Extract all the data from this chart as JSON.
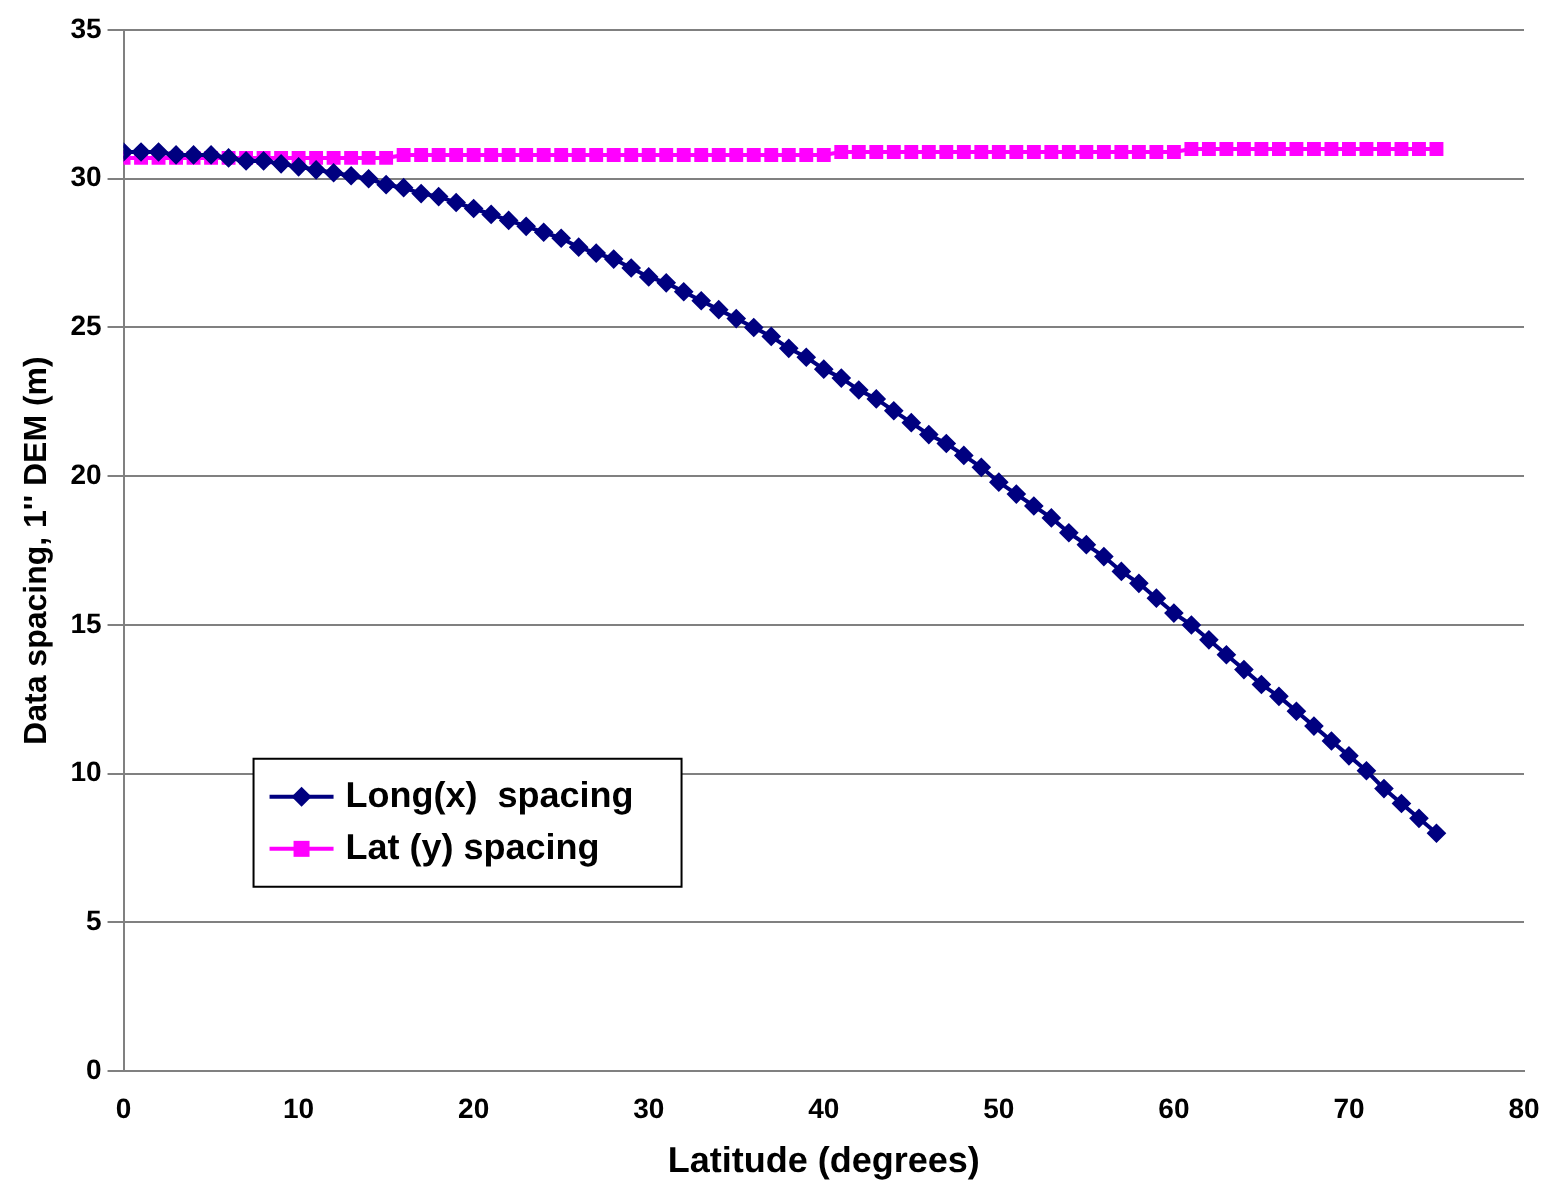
{
  "chart_data": {
    "type": "line",
    "xlabel": "Latitude (degrees)",
    "ylabel": "Data spacing, 1'' DEM (m)",
    "x": [
      0,
      1,
      2,
      3,
      4,
      5,
      6,
      7,
      8,
      9,
      10,
      11,
      12,
      13,
      14,
      15,
      16,
      17,
      18,
      19,
      20,
      21,
      22,
      23,
      24,
      25,
      26,
      27,
      28,
      29,
      30,
      31,
      32,
      33,
      34,
      35,
      36,
      37,
      38,
      39,
      40,
      41,
      42,
      43,
      44,
      45,
      46,
      47,
      48,
      49,
      50,
      51,
      52,
      53,
      54,
      55,
      56,
      57,
      58,
      59,
      60,
      61,
      62,
      63,
      64,
      65,
      66,
      67,
      68,
      69,
      70,
      71,
      72,
      73,
      74,
      75
    ],
    "series": [
      {
        "name": "Long(x)  spacing",
        "color": "#000080",
        "marker": "diamond",
        "values": [
          30.9,
          30.9,
          30.9,
          30.8,
          30.8,
          30.8,
          30.7,
          30.6,
          30.6,
          30.5,
          30.4,
          30.3,
          30.2,
          30.1,
          30.0,
          29.8,
          29.7,
          29.5,
          29.4,
          29.2,
          29.0,
          28.8,
          28.6,
          28.4,
          28.2,
          28.0,
          27.7,
          27.5,
          27.3,
          27.0,
          26.7,
          26.5,
          26.2,
          25.9,
          25.6,
          25.3,
          25.0,
          24.7,
          24.3,
          24.0,
          23.6,
          23.3,
          22.9,
          22.6,
          22.2,
          21.8,
          21.4,
          21.1,
          20.7,
          20.3,
          19.8,
          19.4,
          19.0,
          18.6,
          18.1,
          17.7,
          17.3,
          16.8,
          16.4,
          15.9,
          15.4,
          15.0,
          14.5,
          14.0,
          13.5,
          13.0,
          12.6,
          12.1,
          11.6,
          11.1,
          10.6,
          10.1,
          9.5,
          9.0,
          8.5,
          8.0
        ]
      },
      {
        "name": "Lat (y) spacing",
        "color": "#ff00ff",
        "marker": "square",
        "values": [
          30.7,
          30.7,
          30.7,
          30.7,
          30.7,
          30.7,
          30.7,
          30.7,
          30.7,
          30.7,
          30.7,
          30.7,
          30.7,
          30.7,
          30.7,
          30.7,
          30.8,
          30.8,
          30.8,
          30.8,
          30.8,
          30.8,
          30.8,
          30.8,
          30.8,
          30.8,
          30.8,
          30.8,
          30.8,
          30.8,
          30.8,
          30.8,
          30.8,
          30.8,
          30.8,
          30.8,
          30.8,
          30.8,
          30.8,
          30.8,
          30.8,
          30.9,
          30.9,
          30.9,
          30.9,
          30.9,
          30.9,
          30.9,
          30.9,
          30.9,
          30.9,
          30.9,
          30.9,
          30.9,
          30.9,
          30.9,
          30.9,
          30.9,
          30.9,
          30.9,
          30.9,
          31.0,
          31.0,
          31.0,
          31.0,
          31.0,
          31.0,
          31.0,
          31.0,
          31.0,
          31.0,
          31.0,
          31.0,
          31.0,
          31.0,
          31.0
        ]
      }
    ],
    "xlim": [
      0,
      80
    ],
    "xticks": [
      0,
      10,
      20,
      30,
      40,
      50,
      60,
      70,
      80
    ],
    "ylim": [
      0,
      35
    ],
    "yticks": [
      0,
      5,
      10,
      15,
      20,
      25,
      30,
      35
    ],
    "grid": "y",
    "legend": "bottom left",
    "line_style": "solid"
  }
}
